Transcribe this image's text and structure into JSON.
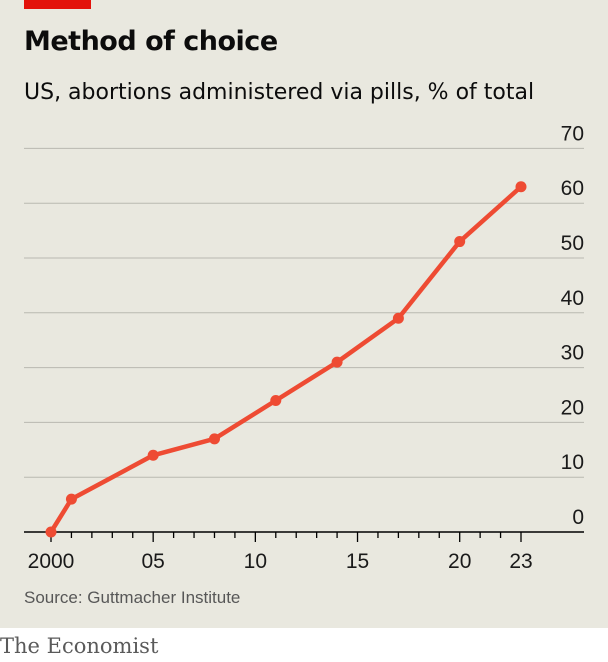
{
  "header": {
    "title": "Method of choice",
    "subtitle": "US, abortions administered via pills, % of total"
  },
  "footer": {
    "source": "Source: Guttmacher Institute",
    "brand": "The Economist"
  },
  "colors": {
    "background": "#e9e8df",
    "line": "#ee4b33",
    "accent_tag": "#e3120b",
    "gridline": "#b9b9b0",
    "axis": "#000000"
  },
  "chart_data": {
    "type": "line",
    "title": "Method of choice",
    "subtitle": "US, abortions administered via pills, % of total",
    "xlabel": "",
    "ylabel": "",
    "xlim": [
      2000,
      2023
    ],
    "ylim": [
      0,
      70
    ],
    "y_axis_side": "right",
    "grid": true,
    "legend": "none",
    "x_tick_labels": [
      {
        "x": 2000,
        "label": "2000"
      },
      {
        "x": 2005,
        "label": "05"
      },
      {
        "x": 2010,
        "label": "10"
      },
      {
        "x": 2015,
        "label": "15"
      },
      {
        "x": 2020,
        "label": "20"
      },
      {
        "x": 2023,
        "label": "23"
      }
    ],
    "y_ticks": [
      0,
      10,
      20,
      30,
      40,
      50,
      60,
      70
    ],
    "series": [
      {
        "x": [
          2000,
          2001,
          2005,
          2008,
          2011,
          2014,
          2017,
          2020,
          2023
        ],
        "y": [
          0,
          6,
          14,
          17,
          24,
          31,
          39,
          53,
          63
        ]
      }
    ]
  }
}
